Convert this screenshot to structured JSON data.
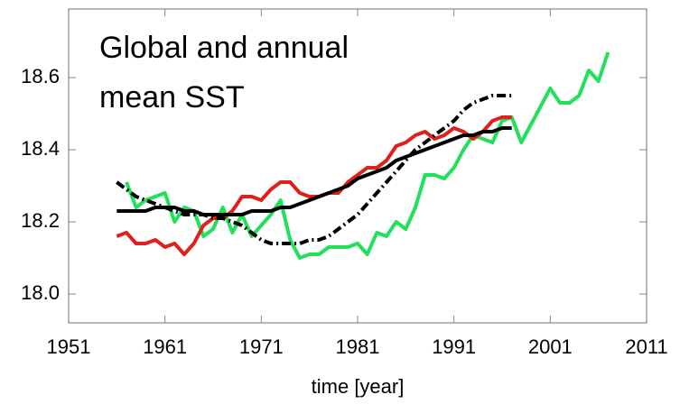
{
  "chart_data": {
    "type": "line",
    "annotation_lines": [
      "Global and annual",
      "mean SST"
    ],
    "x_label": "time [year]",
    "xlim": [
      1951,
      2011
    ],
    "xticks": [
      1951,
      1961,
      1971,
      1981,
      1991,
      2001,
      2011
    ],
    "ylim": [
      17.92,
      18.79
    ],
    "yticks": [
      {
        "value": 18,
        "label": "18.0"
      },
      18.2,
      18.4,
      18.6
    ],
    "series": [
      {
        "color": "#22e05a",
        "dash": "solid",
        "x": [
          1957,
          1958,
          1959,
          1960,
          1961,
          1962,
          1963,
          1964,
          1965,
          1966,
          1967,
          1968,
          1969,
          1970,
          1971,
          1972,
          1973,
          1974,
          1975,
          1976,
          1977,
          1978,
          1979,
          1980,
          1981,
          1982,
          1983,
          1984,
          1985,
          1986,
          1987,
          1988,
          1989,
          1990,
          1991,
          1992,
          1993,
          1994,
          1995,
          1996,
          1997,
          1998,
          1999,
          2000,
          2001,
          2002,
          2003,
          2004,
          2005,
          2006,
          2007
        ],
        "values": [
          18.31,
          18.24,
          18.26,
          18.27,
          18.28,
          18.2,
          18.24,
          18.23,
          18.16,
          18.18,
          18.24,
          18.17,
          18.22,
          18.16,
          18.19,
          18.22,
          18.26,
          18.15,
          18.1,
          18.11,
          18.11,
          18.13,
          18.13,
          18.13,
          18.14,
          18.11,
          18.17,
          18.16,
          18.2,
          18.18,
          18.24,
          18.33,
          18.33,
          18.32,
          18.35,
          18.4,
          18.44,
          18.43,
          18.42,
          18.48,
          18.49,
          18.42,
          18.47,
          18.52,
          18.57,
          18.53,
          18.53,
          18.55,
          18.62,
          18.59,
          18.67
        ]
      },
      {
        "color": "#e0201c",
        "dash": "solid",
        "x": [
          1956,
          1957,
          1958,
          1959,
          1960,
          1961,
          1962,
          1963,
          1964,
          1965,
          1966,
          1967,
          1968,
          1969,
          1970,
          1971,
          1972,
          1973,
          1974,
          1975,
          1976,
          1977,
          1978,
          1979,
          1980,
          1981,
          1982,
          1983,
          1984,
          1985,
          1986,
          1987,
          1988,
          1989,
          1990,
          1991,
          1992,
          1993,
          1994,
          1995,
          1996,
          1997
        ],
        "values": [
          18.16,
          18.17,
          18.14,
          18.14,
          18.15,
          18.13,
          18.14,
          18.11,
          18.14,
          18.19,
          18.21,
          18.21,
          18.23,
          18.27,
          18.27,
          18.26,
          18.29,
          18.31,
          18.31,
          18.28,
          18.27,
          18.27,
          18.28,
          18.28,
          18.31,
          18.33,
          18.35,
          18.35,
          18.37,
          18.41,
          18.42,
          18.44,
          18.45,
          18.43,
          18.44,
          18.46,
          18.45,
          18.43,
          18.45,
          18.48,
          18.49,
          18.49
        ]
      },
      {
        "color": "#000000",
        "dash": "solid",
        "x": [
          1956,
          1957,
          1958,
          1959,
          1960,
          1961,
          1962,
          1963,
          1964,
          1965,
          1966,
          1967,
          1968,
          1969,
          1970,
          1971,
          1972,
          1973,
          1974,
          1975,
          1976,
          1977,
          1978,
          1979,
          1980,
          1981,
          1982,
          1983,
          1984,
          1985,
          1986,
          1987,
          1988,
          1989,
          1990,
          1991,
          1992,
          1993,
          1994,
          1995,
          1996,
          1997
        ],
        "values": [
          18.23,
          18.23,
          18.23,
          18.23,
          18.24,
          18.24,
          18.24,
          18.23,
          18.23,
          18.22,
          18.22,
          18.22,
          18.22,
          18.22,
          18.23,
          18.23,
          18.23,
          18.24,
          18.24,
          18.25,
          18.26,
          18.27,
          18.28,
          18.29,
          18.3,
          18.32,
          18.33,
          18.34,
          18.35,
          18.37,
          18.38,
          18.39,
          18.4,
          18.41,
          18.42,
          18.43,
          18.44,
          18.44,
          18.45,
          18.45,
          18.46,
          18.46
        ]
      },
      {
        "color": "#000000",
        "dash": "dash-dot",
        "x": [
          1956,
          1957,
          1958,
          1959,
          1960,
          1961,
          1962,
          1963,
          1964,
          1965,
          1966,
          1967,
          1968,
          1969,
          1970,
          1971,
          1972,
          1973,
          1974,
          1975,
          1976,
          1977,
          1978,
          1979,
          1980,
          1981,
          1982,
          1983,
          1984,
          1985,
          1986,
          1987,
          1988,
          1989,
          1990,
          1991,
          1992,
          1993,
          1994,
          1995,
          1996,
          1997
        ],
        "values": [
          18.31,
          18.29,
          18.27,
          18.26,
          18.25,
          18.24,
          18.23,
          18.22,
          18.22,
          18.22,
          18.21,
          18.21,
          18.2,
          18.19,
          18.17,
          18.15,
          18.14,
          18.14,
          18.14,
          18.14,
          18.15,
          18.15,
          18.16,
          18.18,
          18.2,
          18.22,
          18.25,
          18.28,
          18.31,
          18.34,
          18.37,
          18.4,
          18.42,
          18.44,
          18.46,
          18.48,
          18.51,
          18.53,
          18.54,
          18.55,
          18.55,
          18.55
        ]
      }
    ]
  }
}
